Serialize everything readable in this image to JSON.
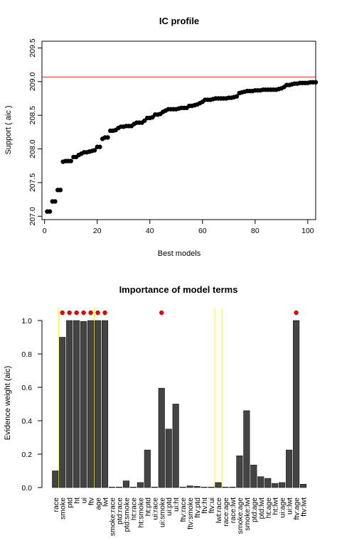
{
  "colors": {
    "reference_line": "#e8302a",
    "bars": "#444444",
    "highlight_lines": "#ffff3a",
    "dots": "#e00000",
    "points": "#000000"
  },
  "chart_data": [
    {
      "type": "scatter",
      "title": "IC profile",
      "xlabel": "Best models",
      "ylabel": "Support ( aic )",
      "xlim": [
        -1,
        103
      ],
      "ylim": [
        206.95,
        209.6
      ],
      "xticks": [
        "0",
        "20",
        "40",
        "60",
        "80",
        "100"
      ],
      "yticks": [
        "207.0",
        "207.5",
        "208.0",
        "208.5",
        "209.0",
        "209.5"
      ],
      "reference_line_y": 209.07,
      "grid": false,
      "x": [
        1,
        2,
        3,
        4,
        5,
        6,
        7,
        8,
        9,
        10,
        11,
        12,
        13,
        14,
        15,
        16,
        17,
        18,
        19,
        20,
        21,
        22,
        23,
        24,
        25,
        26,
        27,
        28,
        29,
        30,
        31,
        32,
        33,
        34,
        35,
        36,
        37,
        38,
        39,
        40,
        41,
        42,
        43,
        44,
        45,
        46,
        47,
        48,
        49,
        50,
        51,
        52,
        53,
        54,
        55,
        56,
        57,
        58,
        59,
        60,
        61,
        62,
        63,
        64,
        65,
        66,
        67,
        68,
        69,
        70,
        71,
        72,
        73,
        74,
        75,
        76,
        77,
        78,
        79,
        80,
        81,
        82,
        83,
        84,
        85,
        86,
        87,
        88,
        89,
        90,
        91,
        92,
        93,
        94,
        95,
        96,
        97,
        98,
        99,
        100,
        101,
        102,
        103
      ],
      "y": [
        207.07,
        207.07,
        207.22,
        207.22,
        207.39,
        207.39,
        207.81,
        207.82,
        207.82,
        207.82,
        207.88,
        207.88,
        207.91,
        207.93,
        207.95,
        207.95,
        207.96,
        207.97,
        207.98,
        208.03,
        208.03,
        208.15,
        208.17,
        208.17,
        208.27,
        208.27,
        208.28,
        208.31,
        208.33,
        208.33,
        208.34,
        208.34,
        208.34,
        208.37,
        208.39,
        208.39,
        208.39,
        208.42,
        208.46,
        208.46,
        208.47,
        208.51,
        208.51,
        208.52,
        208.55,
        208.57,
        208.59,
        208.59,
        208.59,
        208.59,
        208.6,
        208.61,
        208.61,
        208.61,
        208.64,
        208.64,
        208.65,
        208.66,
        208.68,
        208.7,
        208.73,
        208.73,
        208.73,
        208.74,
        208.75,
        208.75,
        208.75,
        208.75,
        208.75,
        208.76,
        208.76,
        208.77,
        208.78,
        208.83,
        208.84,
        208.85,
        208.86,
        208.86,
        208.86,
        208.87,
        208.87,
        208.87,
        208.88,
        208.88,
        208.88,
        208.88,
        208.88,
        208.88,
        208.89,
        208.9,
        208.92,
        208.95,
        208.95,
        208.96,
        208.97,
        208.97,
        208.98,
        208.98,
        208.98,
        208.98,
        208.99,
        208.99,
        208.99
      ]
    },
    {
      "type": "bar",
      "title": "Importance of model terms",
      "ylabel": "Evidence weight (aic)",
      "ylim": [
        0,
        1.05
      ],
      "yticks": [
        "0.0",
        "0.2",
        "0.4",
        "0.6",
        "0.8",
        "1.0"
      ],
      "categories": [
        "race",
        "smoke",
        "ptd",
        "ht",
        "ui",
        "ftv",
        "age",
        "lwt",
        "smoke:race",
        "ptd:race",
        "ptd:smoke",
        "ht:race",
        "ht:smoke",
        "ht:ptd",
        "ui:race",
        "ui:smoke",
        "ui:ptd",
        "ui:ht",
        "ftv:race",
        "ftv:smoke",
        "ftv:ptd",
        "ftv:ht",
        "ftv:ui",
        "lwt:race",
        "race:age",
        "race:lwt",
        "smoke:age",
        "smoke:lwt",
        "ptd:age",
        "ptd:lwt",
        "ht:age",
        "ht:lwt",
        "ui:age",
        "ui:lwt",
        "ftv:age",
        "ftv:lwt"
      ],
      "values": [
        0.1,
        0.9,
        1.0,
        1.0,
        0.995,
        1.0,
        1.0,
        1.0,
        0.003,
        0.003,
        0.04,
        0.003,
        0.03,
        0.225,
        0.003,
        0.595,
        0.35,
        0.5,
        0.003,
        0.01,
        0.007,
        0.003,
        0.003,
        0.03,
        0.003,
        0.003,
        0.19,
        0.46,
        0.135,
        0.065,
        0.055,
        0.025,
        0.03,
        0.225,
        1.0,
        0.02
      ],
      "highlighted": [
        "smoke",
        "ptd",
        "ht",
        "ui",
        "ftv",
        "age",
        "lwt",
        "ui:smoke",
        "ftv:age"
      ],
      "highlight_lines_after": [
        "race",
        "ftv",
        "ftv:ui",
        "lwt:race"
      ]
    }
  ]
}
